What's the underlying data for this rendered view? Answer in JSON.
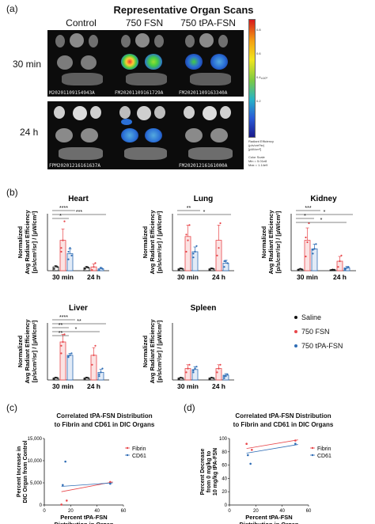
{
  "panel_a": {
    "letter": "(a)",
    "title": "Representative Organ Scans",
    "columns": [
      "Control",
      "750 FSN",
      "750 tPA-FSN"
    ],
    "rows": [
      "30 min",
      "24 h"
    ],
    "scan_ids": [
      [
        "M20201109154943A",
        "FM20201109161729A",
        "FM20201109163340A"
      ],
      [
        "FPM20201216161637A",
        "",
        "FM20201216161000A"
      ]
    ],
    "colorbar": {
      "ticks": [
        "0.8",
        "0.6",
        "0.4",
        "0.2"
      ],
      "exponent": "x10⁹",
      "label_lines": [
        "Radiant Efficiency",
        "(p/s/cm²/sr)",
        "[µW/cm²]"
      ],
      "scale_lines": [
        "Color Scale",
        "Min = 5.01e8",
        "Max = 1.14e9"
      ]
    }
  },
  "panel_b": {
    "letter": "(b)",
    "ylabel_lines": [
      "Normalized",
      "Avg Radiant Efficiency",
      "[p/s/cm²/sr] / [µW/cm²]"
    ],
    "legend": [
      {
        "label": "Saline",
        "color": "#111111"
      },
      {
        "label": "750 FSN",
        "color": "#e8474b"
      },
      {
        "label": "750 tPA-FSN",
        "color": "#2f6db5"
      }
    ]
  },
  "panel_c": {
    "letter": "(c)",
    "title_lines": [
      "Correlated tPA-FSN Distribution",
      "to Fibrin and CD61 in DIC Organs"
    ]
  },
  "panel_d": {
    "letter": "(d)",
    "title_lines": [
      "Correlated tPA-FSN Distribution",
      "to Fibrin and CD61 in DIC Organs"
    ]
  },
  "chart_data": [
    {
      "type": "bar",
      "title": "Heart",
      "categories": [
        "30 min",
        "24 h"
      ],
      "series": [
        {
          "name": "Saline",
          "values": [
            0.1,
            0.08
          ],
          "color": "#111111"
        },
        {
          "name": "750 FSN",
          "values": [
            0.8,
            0.1
          ],
          "color": "#e8474b"
        },
        {
          "name": "750 tPA-FSN",
          "values": [
            0.45,
            0.05
          ],
          "color": "#2f6db5"
        }
      ],
      "points": [
        [
          [
            0.05,
            0.12,
            0.1
          ],
          [
            0.5,
            0.8,
            1.3,
            0.6
          ],
          [
            0.3,
            0.6,
            0.4,
            0.5
          ]
        ],
        [
          [
            0.05,
            0.1,
            0.08
          ],
          [
            0.02,
            0.1,
            0.2
          ],
          [
            0.02,
            0.08,
            0.05
          ]
        ]
      ],
      "errors": [
        [
          0.03,
          0.3,
          0.12
        ],
        [
          0.03,
          0.08,
          0.03
        ]
      ],
      "ylim": [
        0,
        1.5
      ],
      "significance": [
        "****",
        "***",
        "*"
      ]
    },
    {
      "type": "bar",
      "title": "Lung",
      "categories": [
        "30 min",
        "24 h"
      ],
      "series": [
        {
          "name": "Saline",
          "values": [
            0.1,
            0.1
          ],
          "color": "#111111"
        },
        {
          "name": "750 FSN",
          "values": [
            1.8,
            1.6
          ],
          "color": "#e8474b"
        },
        {
          "name": "750 tPA-FSN",
          "values": [
            1.0,
            0.4
          ],
          "color": "#2f6db5"
        }
      ],
      "points": [
        [
          [
            0.05,
            0.12,
            0.1
          ],
          [
            1.0,
            1.6,
            2.4,
            1.9
          ],
          [
            0.7,
            1.0,
            1.3,
            0.9
          ]
        ],
        [
          [
            0.05,
            0.12,
            0.1
          ],
          [
            0.8,
            1.2,
            2.5
          ],
          [
            0.2,
            0.5,
            0.4,
            0.5
          ]
        ]
      ],
      "errors": [
        [
          0.04,
          0.6,
          0.25
        ],
        [
          0.04,
          0.8,
          0.15
        ]
      ],
      "ylim": [
        0,
        3
      ],
      "significance": [
        "**",
        "*"
      ]
    },
    {
      "type": "bar",
      "title": "Kidney",
      "categories": [
        "30 min",
        "24 h"
      ],
      "series": [
        {
          "name": "Saline",
          "values": [
            0.15,
            0.1
          ],
          "color": "#111111"
        },
        {
          "name": "750 FSN",
          "values": [
            3.2,
            1.0
          ],
          "color": "#e8474b"
        },
        {
          "name": "750 tPA-FSN",
          "values": [
            2.3,
            0.3
          ],
          "color": "#2f6db5"
        }
      ],
      "points": [
        [
          [
            0.1,
            0.2,
            0.15
          ],
          [
            1.5,
            3.0,
            5.0,
            3.5
          ],
          [
            1.8,
            2.3,
            2.8,
            2.2
          ]
        ],
        [
          [
            0.05,
            0.12,
            0.1
          ],
          [
            0.4,
            1.0,
            1.6
          ],
          [
            0.1,
            0.3,
            0.4,
            0.2
          ]
        ]
      ],
      "errors": [
        [
          0.05,
          1.3,
          0.5
        ],
        [
          0.04,
          0.5,
          0.15
        ]
      ],
      "ylim": [
        0,
        6
      ],
      "significance": [
        "***",
        "*",
        "*",
        "*"
      ]
    },
    {
      "type": "bar",
      "title": "Liver",
      "categories": [
        "30 min",
        "24 h"
      ],
      "series": [
        {
          "name": "Saline",
          "values": [
            0.05,
            0.05
          ],
          "color": "#111111"
        },
        {
          "name": "750 FSN",
          "values": [
            1.0,
            0.65
          ],
          "color": "#e8474b"
        },
        {
          "name": "750 tPA-FSN",
          "values": [
            0.65,
            0.2
          ],
          "color": "#2f6db5"
        }
      ],
      "points": [
        [
          [
            0.03,
            0.06,
            0.05
          ],
          [
            0.7,
            1.0,
            1.2,
            0.9
          ],
          [
            0.6,
            0.65,
            0.7,
            0.62
          ]
        ],
        [
          [
            0.03,
            0.06,
            0.05
          ],
          [
            0.4,
            0.65,
            0.9
          ],
          [
            0.1,
            0.2,
            0.3,
            0.15
          ]
        ]
      ],
      "errors": [
        [
          0.02,
          0.2,
          0.05
        ],
        [
          0.02,
          0.2,
          0.08
        ]
      ],
      "ylim": [
        0,
        1.5
      ],
      "significance": [
        "****",
        "**",
        "**",
        "*",
        "**"
      ]
    },
    {
      "type": "bar",
      "title": "Spleen",
      "categories": [
        "30 min",
        "24 h"
      ],
      "series": [
        {
          "name": "Saline",
          "values": [
            0.1,
            0.1
          ],
          "color": "#111111"
        },
        {
          "name": "750 FSN",
          "values": [
            0.6,
            0.6
          ],
          "color": "#e8474b"
        },
        {
          "name": "750 tPA-FSN",
          "values": [
            0.55,
            0.25
          ],
          "color": "#2f6db5"
        }
      ],
      "points": [
        [
          [
            0.05,
            0.12,
            0.1
          ],
          [
            0.4,
            0.6,
            0.8
          ],
          [
            0.4,
            0.6,
            0.7,
            0.5
          ]
        ],
        [
          [
            0.05,
            0.12,
            0.1
          ],
          [
            0.4,
            0.6,
            0.8
          ],
          [
            0.1,
            0.2,
            0.3,
            0.2
          ]
        ]
      ],
      "errors": [
        [
          0.03,
          0.2,
          0.15
        ],
        [
          0.03,
          0.2,
          0.08
        ]
      ],
      "ylim": [
        0,
        3
      ],
      "significance": []
    },
    {
      "type": "scatter",
      "title": "Correlated tPA-FSN Distribution to Fibrin and CD61 in DIC Organs",
      "xlabel": "Percent tPA-FSN Distribution in Organ",
      "ylabel": "Percent Increase in DIC Organ from Control",
      "xlim": [
        0,
        60
      ],
      "ylim": [
        0,
        15000
      ],
      "xticks": [
        0,
        20,
        40,
        60
      ],
      "yticks": [
        0,
        5000,
        10000,
        15000
      ],
      "ytick_labels": [
        "0",
        "5,000",
        "10,000",
        "15,000"
      ],
      "series": [
        {
          "name": "Fibrin",
          "color": "#e8474b",
          "x": [
            13,
            17,
            50
          ],
          "y": [
            100,
            1000,
            5200
          ],
          "fit": [
            [
              13,
              3000
            ],
            [
              52,
              5200
            ]
          ]
        },
        {
          "name": "CD61",
          "color": "#2f6db5",
          "x": [
            14,
            16,
            50
          ],
          "y": [
            4500,
            9800,
            4800
          ],
          "fit": [
            [
              13,
              4200
            ],
            [
              52,
              5000
            ]
          ]
        }
      ]
    },
    {
      "type": "scatter",
      "title": "Correlated tPA-FSN Distribution to Fibrin and CD61 in DIC Organs",
      "xlabel": "Percent tPA-FSN Distribution in Organ",
      "ylabel": "Percent Decrease from 0 mg/kg to 10 mg/kg tPA-FSN",
      "xlim": [
        0,
        60
      ],
      "ylim": [
        0,
        100
      ],
      "xticks": [
        0,
        20,
        40,
        60
      ],
      "yticks": [
        0,
        20,
        40,
        60,
        80,
        100
      ],
      "series": [
        {
          "name": "Fibrin",
          "color": "#e8474b",
          "x": [
            13,
            17,
            50
          ],
          "y": [
            92,
            83,
            97
          ],
          "fit": [
            [
              13,
              85
            ],
            [
              52,
              98
            ]
          ]
        },
        {
          "name": "CD61",
          "color": "#2f6db5",
          "x": [
            14,
            16,
            50
          ],
          "y": [
            75,
            62,
            92
          ],
          "fit": [
            [
              13,
              78
            ],
            [
              52,
              91
            ]
          ]
        }
      ]
    }
  ]
}
